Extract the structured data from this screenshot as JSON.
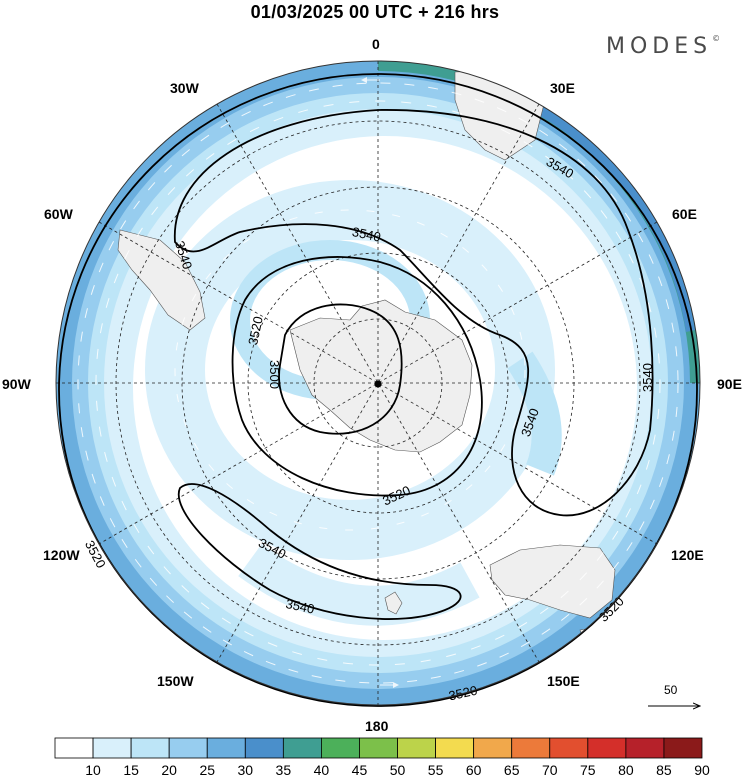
{
  "header": {
    "title": "01/03/2025  00 UTC  + 216 hrs",
    "brand": "MODES",
    "brand_mark": "©"
  },
  "longitude_labels": {
    "lon_0": "0",
    "lon_30e": "30E",
    "lon_60e": "60E",
    "lon_90e": "90E",
    "lon_120e": "120E",
    "lon_150e": "150E",
    "lon_180": "180",
    "lon_150w": "150W",
    "lon_120w": "120W",
    "lon_90w": "90W",
    "lon_60w": "60W",
    "lon_30w": "30W"
  },
  "contour_labels": {
    "c3500": "3500",
    "c3520": "3520",
    "c3540": "3540"
  },
  "colorbar": {
    "ticks": [
      "10",
      "15",
      "20",
      "25",
      "30",
      "35",
      "40",
      "45",
      "50",
      "55",
      "60",
      "65",
      "70",
      "75",
      "80",
      "85",
      "90"
    ],
    "colors": [
      "#ffffff",
      "#d9f0fb",
      "#bde5f7",
      "#97cdef",
      "#6aaede",
      "#4a8fcb",
      "#3f9e92",
      "#4cb05a",
      "#7cc04a",
      "#bcd34a",
      "#f3db4f",
      "#f1a84b",
      "#ec7a3a",
      "#e24f2f",
      "#d42f2a",
      "#b6212a",
      "#8b1a1a"
    ]
  },
  "wind_reference": {
    "label": "50"
  },
  "colors": {
    "land": "#efefef",
    "contour": "#000000",
    "grid": "#222222"
  }
}
